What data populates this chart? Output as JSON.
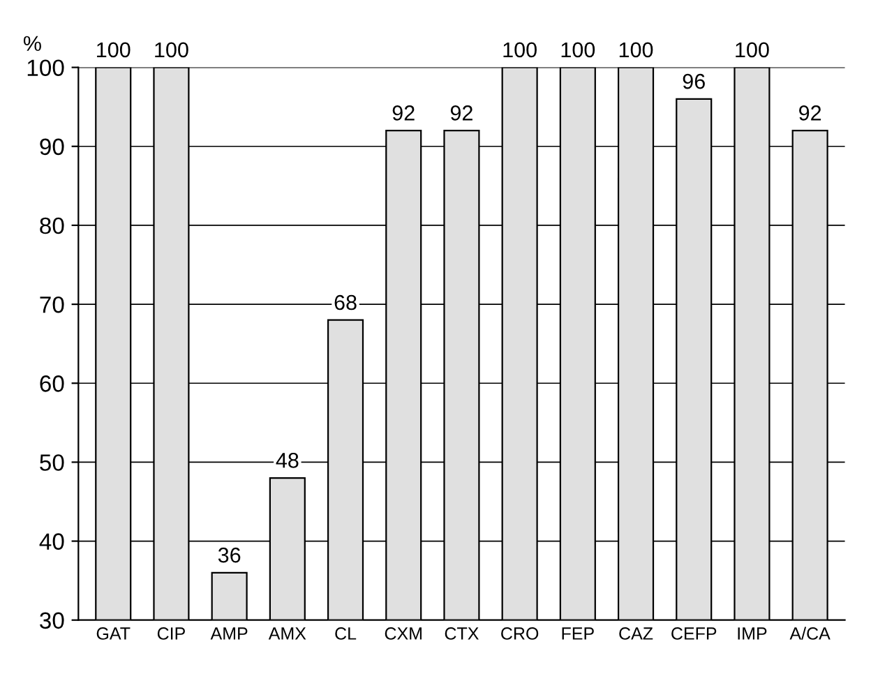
{
  "chart_data": {
    "type": "bar",
    "ylabel": "%",
    "categories": [
      "GAT",
      "CIP",
      "AMP",
      "AMX",
      "CL",
      "CXM",
      "CTX",
      "CRO",
      "FEP",
      "CAZ",
      "CEFP",
      "IMP",
      "A/CA"
    ],
    "values": [
      100,
      100,
      36,
      48,
      68,
      92,
      92,
      100,
      100,
      100,
      96,
      100,
      92
    ],
    "color": "#e0e0e0",
    "ylim": [
      30,
      100
    ],
    "yticks": [
      30,
      40,
      50,
      60,
      70,
      80,
      90,
      100
    ],
    "grid": "y",
    "data_labels": true
  }
}
